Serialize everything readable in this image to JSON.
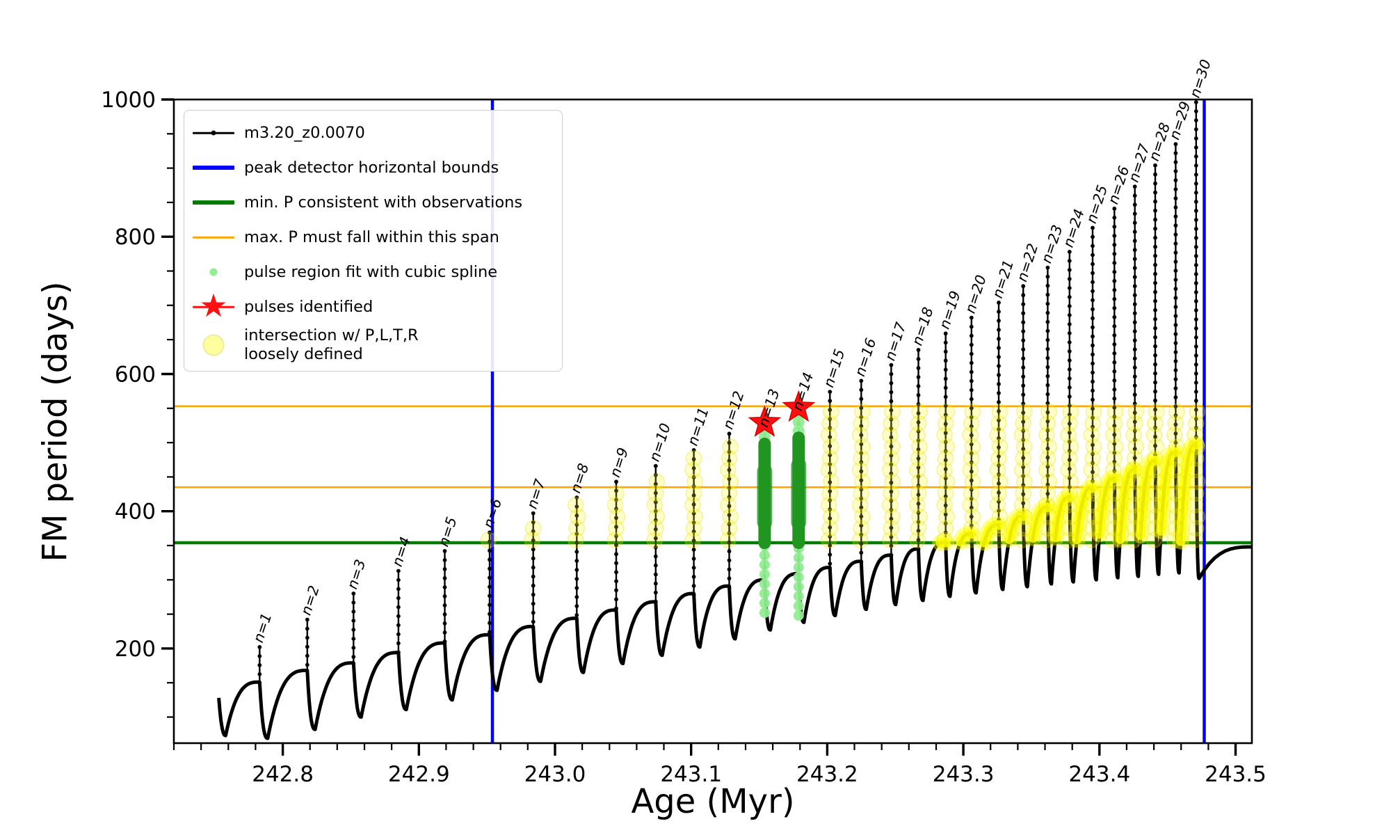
{
  "figure": {
    "background": "#ffffff"
  },
  "axis": {
    "xlabel": "Age (Myr)",
    "ylabel": "FM period (days)"
  },
  "legend": {
    "position": "upper left",
    "items": [
      {
        "label": "m3.20_z0.0070",
        "marker": "line-dot",
        "color": "#000000"
      },
      {
        "label": "peak detector horizontal bounds",
        "marker": "thick-line",
        "color": "#0000ff"
      },
      {
        "label": "min. P consistent with observations",
        "marker": "thick-line",
        "color": "#007c00"
      },
      {
        "label": "max. P must fall within this span",
        "marker": "line",
        "color": "#ffa500"
      },
      {
        "label": "pulse region fit with cubic spline",
        "marker": "dot-small",
        "color": "#90ee90"
      },
      {
        "label": "pulses identified",
        "marker": "star-line",
        "color": "#ff1010"
      },
      {
        "label": "intersection w/ P,L,T,R\nloosely defined",
        "marker": "dot-big",
        "color": "#ffff00"
      }
    ]
  },
  "chart_data": {
    "type": "line",
    "title": "",
    "xlabel": "Age (Myr)",
    "ylabel": "FM period (days)",
    "xlim": [
      242.72,
      243.512
    ],
    "ylim": [
      62,
      1000
    ],
    "x_major_ticks": [
      242.8,
      242.9,
      243.0,
      243.1,
      243.2,
      243.3,
      243.4,
      243.5
    ],
    "x_tick_labels": [
      "242.8",
      "242.9",
      "243.0",
      "243.1",
      "243.2",
      "243.3",
      "243.4",
      "243.5"
    ],
    "x_minor_tick_step": 0.02,
    "y_major_ticks": [
      200,
      400,
      600,
      800,
      1000
    ],
    "y_tick_labels": [
      "200",
      "400",
      "600",
      "800",
      "1000"
    ],
    "y_minor_tick_step": 50,
    "grid": false,
    "series_label": "m3.20_z0.0070",
    "peak_detector_bounds_age": [
      242.954,
      243.477
    ],
    "min_P_consistent": 354,
    "max_P_span": [
      435,
      553
    ],
    "intersection_band": [
      354,
      553
    ],
    "pulses_identified": [
      {
        "age": 243.154,
        "period": 529
      },
      {
        "age": 243.179,
        "period": 551
      }
    ],
    "pulse_spline_regions": [
      {
        "age": 243.154,
        "dots_span": [
          252,
          524
        ],
        "dense_span": [
          354,
          498
        ]
      },
      {
        "age": 243.179,
        "dots_span": [
          248,
          545
        ],
        "dense_span": [
          354,
          507
        ]
      }
    ],
    "cycles": {
      "start": {
        "age": 242.753,
        "value": 128
      },
      "labels": [
        "n=1",
        "n=2",
        "n=3",
        "n=4",
        "n=5",
        "n=6",
        "n=7",
        "n=8",
        "n=9",
        "n=10",
        "n=11",
        "n=12",
        "n=13",
        "n=14",
        "n=15",
        "n=16",
        "n=17",
        "n=18",
        "n=19",
        "n=20",
        "n=21",
        "n=22",
        "n=23",
        "n=24",
        "n=25",
        "n=26",
        "n=27",
        "n=28",
        "n=29",
        "n=30"
      ],
      "spike_age": [
        242.783,
        242.818,
        242.852,
        242.885,
        242.919,
        242.952,
        242.984,
        243.016,
        243.045,
        243.074,
        243.102,
        243.128,
        243.154,
        243.179,
        243.202,
        243.225,
        243.247,
        243.267,
        243.287,
        243.306,
        243.326,
        243.344,
        243.362,
        243.378,
        243.395,
        243.411,
        243.426,
        243.441,
        243.456,
        243.471
      ],
      "spike_peak": [
        202,
        242,
        280,
        313,
        342,
        369,
        397,
        420,
        443,
        466,
        489,
        513,
        516,
        540,
        574,
        590,
        613,
        635,
        659,
        682,
        704,
        728,
        755,
        778,
        813,
        841,
        873,
        904,
        935,
        996
      ],
      "arc_shoulder": [
        151,
        168,
        179,
        194,
        208,
        220,
        232,
        244,
        256,
        268,
        280,
        291,
        300,
        309,
        318,
        327,
        336,
        345,
        355,
        367,
        380,
        393,
        406,
        420,
        434,
        448,
        461,
        474,
        486,
        497
      ],
      "trough_before": [
        73,
        69,
        82,
        100,
        111,
        125,
        139,
        152,
        165,
        178,
        190,
        202,
        214,
        227,
        238,
        248,
        257,
        264,
        270,
        276,
        281,
        286,
        290,
        294,
        297,
        300,
        303,
        305,
        308,
        310
      ],
      "tail": {
        "trough": 302,
        "end_value": 348
      }
    },
    "yellow_spikes": {
      "first_n": 6,
      "excluded_n": [
        13,
        14
      ],
      "band_low": 358,
      "band_high": 546
    },
    "colors": {
      "series": "#000000",
      "peak_detector_bounds": "#0000ff",
      "min_P_line": "#007c00",
      "max_P_span_lines": "#ffa500",
      "pulse_fit_dots": "#90ee90",
      "pulse_fit_dense": "#209620",
      "pulse_star": "#ff1010",
      "intersection": "#ffff00",
      "spine": "#000000",
      "text": "#000000"
    }
  }
}
